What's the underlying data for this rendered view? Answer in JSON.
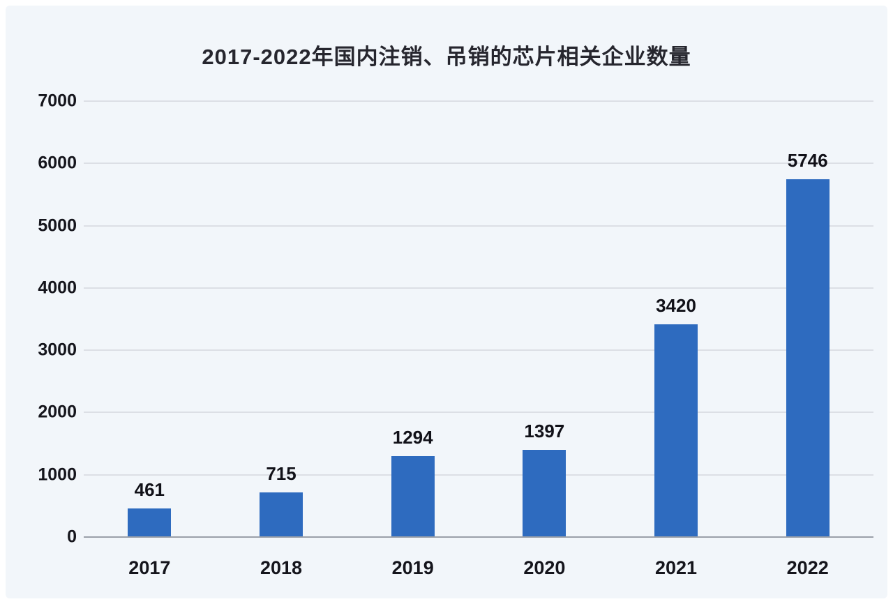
{
  "chart_data": {
    "type": "bar",
    "title": "2017-2022年国内注销、吊销的芯片相关企业数量",
    "categories": [
      "2017",
      "2018",
      "2019",
      "2020",
      "2021",
      "2022"
    ],
    "values": [
      461,
      715,
      1294,
      1397,
      3420,
      5746
    ],
    "xlabel": "",
    "ylabel": "",
    "ylim": [
      0,
      7000
    ],
    "ytick_step": 1000,
    "grid": true,
    "legend": false,
    "colors": {
      "bar": "#2e6bbf",
      "background": "#f2f6fa",
      "grid": "#dcdfe5",
      "axis": "#9aa0a9",
      "text": "#15151c",
      "title": "#26262e"
    }
  }
}
